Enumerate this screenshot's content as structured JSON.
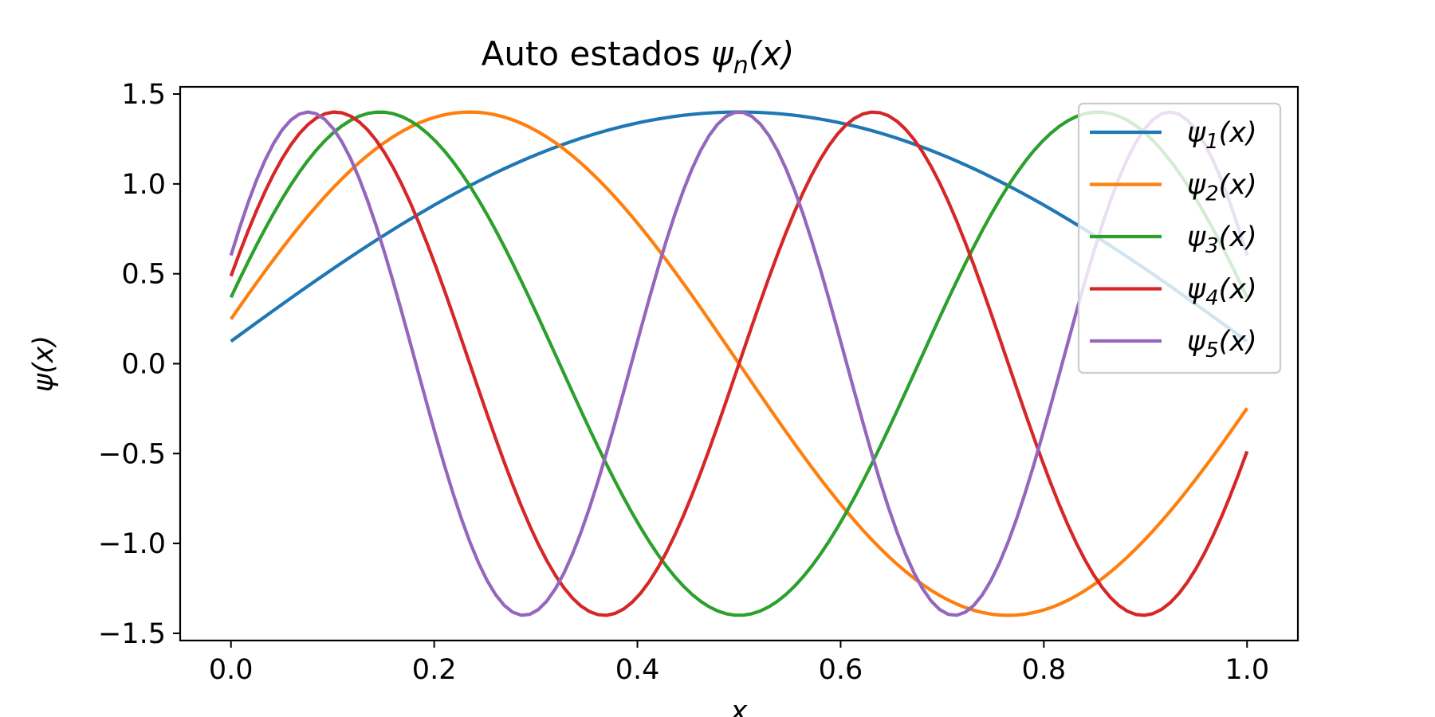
{
  "chart_data": {
    "type": "line",
    "title": {
      "text": "Auto estados ",
      "math_symbol": "ψ",
      "math_sub": "n",
      "math_arg": "(x)"
    },
    "xlabel": "x",
    "ylabel": "ψ(x)",
    "xlim": [
      -0.05,
      1.05
    ],
    "ylim": [
      -1.54,
      1.54
    ],
    "x_ticks": [
      0.0,
      0.2,
      0.4,
      0.6,
      0.8,
      1.0
    ],
    "x_tick_labels": [
      "0.0",
      "0.2",
      "0.4",
      "0.6",
      "0.8",
      "1.0"
    ],
    "y_ticks": [
      1.5,
      1.0,
      0.5,
      0.0,
      -0.5,
      -1.0,
      -1.5
    ],
    "y_tick_labels": [
      "1.5",
      "1.0",
      "0.5",
      "0.0",
      "−0.5",
      "−1.0",
      "−1.5"
    ],
    "x_range": [
      0.0,
      1.0
    ],
    "n_points": 120,
    "amplitude": 1.4,
    "grid": false,
    "legend_position": "top-right",
    "series": [
      {
        "name": "ψ1(x)",
        "label_symbol": "ψ",
        "label_sub": "1",
        "label_arg": "(x)",
        "n": 1,
        "color": "#1f77b4"
      },
      {
        "name": "ψ2(x)",
        "label_symbol": "ψ",
        "label_sub": "2",
        "label_arg": "(x)",
        "n": 2,
        "color": "#ff7f0e"
      },
      {
        "name": "ψ3(x)",
        "label_symbol": "ψ",
        "label_sub": "3",
        "label_arg": "(x)",
        "n": 3,
        "color": "#2ca02c"
      },
      {
        "name": "ψ4(x)",
        "label_symbol": "ψ",
        "label_sub": "4",
        "label_arg": "(x)",
        "n": 4,
        "color": "#d62728"
      },
      {
        "name": "ψ5(x)",
        "label_symbol": "ψ",
        "label_sub": "5",
        "label_arg": "(x)",
        "n": 5,
        "color": "#9467bd"
      }
    ]
  }
}
